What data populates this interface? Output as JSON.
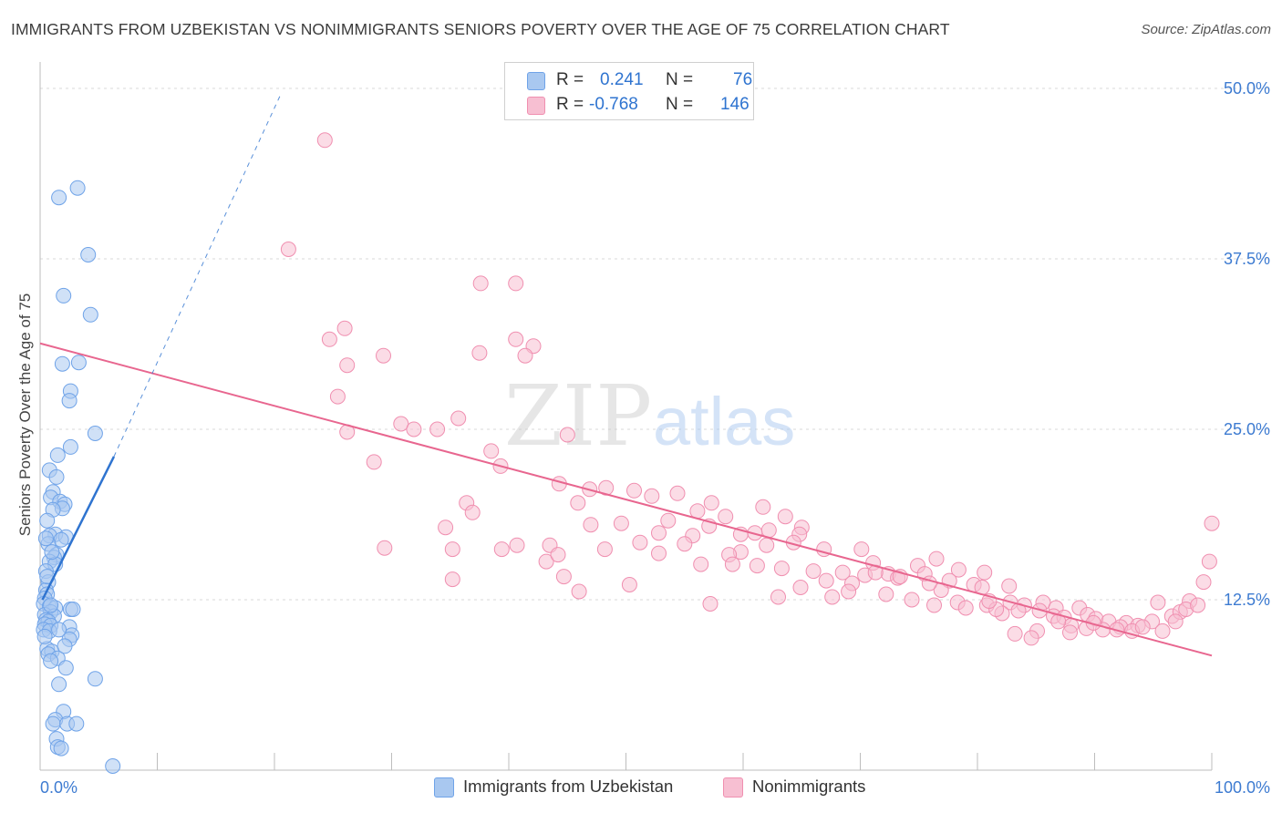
{
  "title": "IMMIGRANTS FROM UZBEKISTAN VS NONIMMIGRANTS SENIORS POVERTY OVER THE AGE OF 75 CORRELATION CHART",
  "source": "Source: ZipAtlas.com",
  "watermark": {
    "zip": "ZIP",
    "atlas": "atlas"
  },
  "colors": {
    "blue": "#6fa3e8",
    "blue_fill": "#a9c8f0",
    "blue_line": "#2f74d0",
    "pink": "#f08fb0",
    "pink_fill": "#f7bfd2",
    "pink_line": "#e8668f",
    "axis_text": "#3d7bd1",
    "grid": "#d9d9d9"
  },
  "legend": {
    "rows": [
      {
        "r_label": "R =",
        "r_value": "0.241",
        "n_label": "N =",
        "n_value": "76"
      },
      {
        "r_label": "R =",
        "r_value": "-0.768",
        "n_label": "N =",
        "n_value": "146"
      }
    ]
  },
  "bottom_legend": [
    "Immigrants from Uzbekistan",
    "Nonimmigrants"
  ],
  "chart_data": {
    "type": "scatter",
    "title": "IMMIGRANTS FROM UZBEKISTAN VS NONIMMIGRANTS SENIORS POVERTY OVER THE AGE OF 75 CORRELATION CHART",
    "xlabel": "",
    "ylabel": "Seniors Poverty Over the Age of 75",
    "xlim": [
      0,
      100
    ],
    "ylim": [
      0,
      50
    ],
    "x_tick_labels": [
      "0.0%",
      "100.0%"
    ],
    "y_ticks": [
      12.5,
      25.0,
      37.5,
      50.0
    ],
    "y_tick_labels": [
      "12.5%",
      "25.0%",
      "37.5%",
      "50.0%"
    ],
    "series": [
      {
        "name": "Immigrants from Uzbekistan",
        "R": 0.241,
        "N": 76,
        "trend": {
          "x0": 0.2,
          "y0": 12.5,
          "x1": 6.3,
          "y1": 23.0,
          "dashed_to": [
            20.5,
            49.5
          ]
        },
        "points": [
          [
            3.2,
            42.7
          ],
          [
            1.6,
            42.0
          ],
          [
            4.1,
            37.8
          ],
          [
            2.0,
            34.8
          ],
          [
            4.3,
            33.4
          ],
          [
            1.9,
            29.8
          ],
          [
            3.3,
            29.9
          ],
          [
            2.6,
            27.8
          ],
          [
            2.5,
            27.1
          ],
          [
            4.7,
            24.7
          ],
          [
            2.6,
            23.7
          ],
          [
            1.5,
            23.1
          ],
          [
            0.8,
            22.0
          ],
          [
            1.4,
            21.5
          ],
          [
            1.1,
            20.4
          ],
          [
            0.9,
            20.0
          ],
          [
            1.7,
            19.7
          ],
          [
            2.1,
            19.5
          ],
          [
            1.9,
            19.2
          ],
          [
            1.1,
            19.1
          ],
          [
            0.6,
            18.3
          ],
          [
            1.3,
            17.3
          ],
          [
            0.8,
            17.2
          ],
          [
            2.2,
            17.1
          ],
          [
            1.8,
            16.9
          ],
          [
            0.7,
            16.6
          ],
          [
            1.4,
            15.8
          ],
          [
            1.2,
            15.6
          ],
          [
            0.8,
            15.3
          ],
          [
            1.3,
            15.1
          ],
          [
            0.5,
            14.6
          ],
          [
            0.7,
            13.8
          ],
          [
            0.5,
            13.2
          ],
          [
            0.6,
            12.9
          ],
          [
            0.4,
            12.6
          ],
          [
            0.3,
            12.2
          ],
          [
            0.8,
            12.0
          ],
          [
            1.3,
            11.9
          ],
          [
            2.6,
            11.8
          ],
          [
            2.8,
            11.8
          ],
          [
            0.9,
            11.6
          ],
          [
            0.4,
            11.4
          ],
          [
            1.2,
            11.3
          ],
          [
            0.5,
            11.0
          ],
          [
            0.7,
            10.9
          ],
          [
            0.4,
            10.7
          ],
          [
            0.9,
            10.6
          ],
          [
            2.5,
            10.5
          ],
          [
            0.3,
            10.3
          ],
          [
            0.8,
            10.2
          ],
          [
            2.7,
            9.9
          ],
          [
            2.5,
            9.6
          ],
          [
            0.6,
            8.9
          ],
          [
            1.0,
            8.7
          ],
          [
            0.7,
            8.5
          ],
          [
            1.5,
            8.2
          ],
          [
            0.9,
            8.0
          ],
          [
            2.2,
            7.5
          ],
          [
            4.7,
            6.7
          ],
          [
            1.6,
            6.3
          ],
          [
            2.0,
            4.3
          ],
          [
            1.3,
            3.7
          ],
          [
            1.1,
            3.4
          ],
          [
            2.3,
            3.4
          ],
          [
            3.1,
            3.4
          ],
          [
            1.4,
            2.3
          ],
          [
            1.5,
            1.7
          ],
          [
            1.8,
            1.6
          ],
          [
            6.2,
            0.3
          ],
          [
            0.5,
            17.0
          ],
          [
            0.6,
            14.2
          ],
          [
            0.9,
            12.1
          ],
          [
            1.6,
            10.3
          ],
          [
            2.1,
            9.1
          ],
          [
            0.4,
            9.8
          ],
          [
            1.0,
            16.0
          ]
        ]
      },
      {
        "name": "Nonimmigrants",
        "R": -0.768,
        "N": 146,
        "trend": {
          "x0": 0,
          "y0": 31.3,
          "x1": 100,
          "y1": 8.4
        },
        "points": [
          [
            24.3,
            46.2
          ],
          [
            21.2,
            38.2
          ],
          [
            37.6,
            35.7
          ],
          [
            40.6,
            35.7
          ],
          [
            26.0,
            32.4
          ],
          [
            24.7,
            31.6
          ],
          [
            40.6,
            31.6
          ],
          [
            42.1,
            31.1
          ],
          [
            29.3,
            30.4
          ],
          [
            37.5,
            30.6
          ],
          [
            41.4,
            30.4
          ],
          [
            26.2,
            29.7
          ],
          [
            25.4,
            27.4
          ],
          [
            35.7,
            25.8
          ],
          [
            30.8,
            25.4
          ],
          [
            31.9,
            25.0
          ],
          [
            33.9,
            25.0
          ],
          [
            26.2,
            24.8
          ],
          [
            45.0,
            24.6
          ],
          [
            38.5,
            23.4
          ],
          [
            28.5,
            22.6
          ],
          [
            39.3,
            22.3
          ],
          [
            44.3,
            21.0
          ],
          [
            46.9,
            20.6
          ],
          [
            48.3,
            20.7
          ],
          [
            50.7,
            20.5
          ],
          [
            54.4,
            20.3
          ],
          [
            52.2,
            20.1
          ],
          [
            36.4,
            19.6
          ],
          [
            45.9,
            19.6
          ],
          [
            57.3,
            19.6
          ],
          [
            56.1,
            19.0
          ],
          [
            53.6,
            18.3
          ],
          [
            58.5,
            18.6
          ],
          [
            63.6,
            18.6
          ],
          [
            61.7,
            19.3
          ],
          [
            36.9,
            18.9
          ],
          [
            47.0,
            18.0
          ],
          [
            49.6,
            18.1
          ],
          [
            52.8,
            17.4
          ],
          [
            55.7,
            17.2
          ],
          [
            57.1,
            17.9
          ],
          [
            59.8,
            17.3
          ],
          [
            62.2,
            17.6
          ],
          [
            65.0,
            17.8
          ],
          [
            34.6,
            17.8
          ],
          [
            40.7,
            16.5
          ],
          [
            43.5,
            16.5
          ],
          [
            48.2,
            16.2
          ],
          [
            51.2,
            16.7
          ],
          [
            55.0,
            16.6
          ],
          [
            64.8,
            17.3
          ],
          [
            64.3,
            16.7
          ],
          [
            29.4,
            16.3
          ],
          [
            35.2,
            16.2
          ],
          [
            39.4,
            16.2
          ],
          [
            43.2,
            15.3
          ],
          [
            44.2,
            15.8
          ],
          [
            52.8,
            15.9
          ],
          [
            59.8,
            16.0
          ],
          [
            62.0,
            16.5
          ],
          [
            66.9,
            16.2
          ],
          [
            70.1,
            16.2
          ],
          [
            71.1,
            15.2
          ],
          [
            56.4,
            15.1
          ],
          [
            61.2,
            15.0
          ],
          [
            63.3,
            14.8
          ],
          [
            68.5,
            14.5
          ],
          [
            70.4,
            14.3
          ],
          [
            72.4,
            14.4
          ],
          [
            73.2,
            14.1
          ],
          [
            74.9,
            15.0
          ],
          [
            76.5,
            15.5
          ],
          [
            78.4,
            14.7
          ],
          [
            80.6,
            14.5
          ],
          [
            35.2,
            14.0
          ],
          [
            44.7,
            14.2
          ],
          [
            67.1,
            13.9
          ],
          [
            69.3,
            13.7
          ],
          [
            77.6,
            13.9
          ],
          [
            79.7,
            13.6
          ],
          [
            71.3,
            14.5
          ],
          [
            76.9,
            13.2
          ],
          [
            80.4,
            13.4
          ],
          [
            73.4,
            14.2
          ],
          [
            75.5,
            14.4
          ],
          [
            82.7,
            13.5
          ],
          [
            50.3,
            13.6
          ],
          [
            46.0,
            13.1
          ],
          [
            64.9,
            13.4
          ],
          [
            67.6,
            12.7
          ],
          [
            74.4,
            12.5
          ],
          [
            78.3,
            12.3
          ],
          [
            80.8,
            12.1
          ],
          [
            82.8,
            12.3
          ],
          [
            84.0,
            12.1
          ],
          [
            85.6,
            12.3
          ],
          [
            86.7,
            11.9
          ],
          [
            57.2,
            12.2
          ],
          [
            79.0,
            11.9
          ],
          [
            82.1,
            11.5
          ],
          [
            83.5,
            11.7
          ],
          [
            85.3,
            11.7
          ],
          [
            86.5,
            11.3
          ],
          [
            87.4,
            11.2
          ],
          [
            88.7,
            11.9
          ],
          [
            89.4,
            11.4
          ],
          [
            90.1,
            11.1
          ],
          [
            91.2,
            10.9
          ],
          [
            92.7,
            10.8
          ],
          [
            93.7,
            10.6
          ],
          [
            94.9,
            10.9
          ],
          [
            96.6,
            11.3
          ],
          [
            97.3,
            11.6
          ],
          [
            98.1,
            12.4
          ],
          [
            99.3,
            13.8
          ],
          [
            99.8,
            15.3
          ],
          [
            100.0,
            18.1
          ],
          [
            95.4,
            12.3
          ],
          [
            92.2,
            10.5
          ],
          [
            90.7,
            10.3
          ],
          [
            89.3,
            10.4
          ],
          [
            88.0,
            10.6
          ],
          [
            86.9,
            10.9
          ],
          [
            85.1,
            10.2
          ],
          [
            84.6,
            9.7
          ],
          [
            83.2,
            10.0
          ],
          [
            87.9,
            10.1
          ],
          [
            89.9,
            10.8
          ],
          [
            91.9,
            10.3
          ],
          [
            93.2,
            10.2
          ],
          [
            94.1,
            10.5
          ],
          [
            95.8,
            10.2
          ],
          [
            96.9,
            10.9
          ],
          [
            97.8,
            11.8
          ],
          [
            98.8,
            12.1
          ],
          [
            81.6,
            11.8
          ],
          [
            58.8,
            15.8
          ],
          [
            61.0,
            17.4
          ],
          [
            59.1,
            15.1
          ],
          [
            63.0,
            12.7
          ],
          [
            66.0,
            14.6
          ],
          [
            69.0,
            13.1
          ],
          [
            75.9,
            13.7
          ],
          [
            72.2,
            12.9
          ],
          [
            76.3,
            12.1
          ],
          [
            81.0,
            12.4
          ]
        ]
      }
    ]
  }
}
